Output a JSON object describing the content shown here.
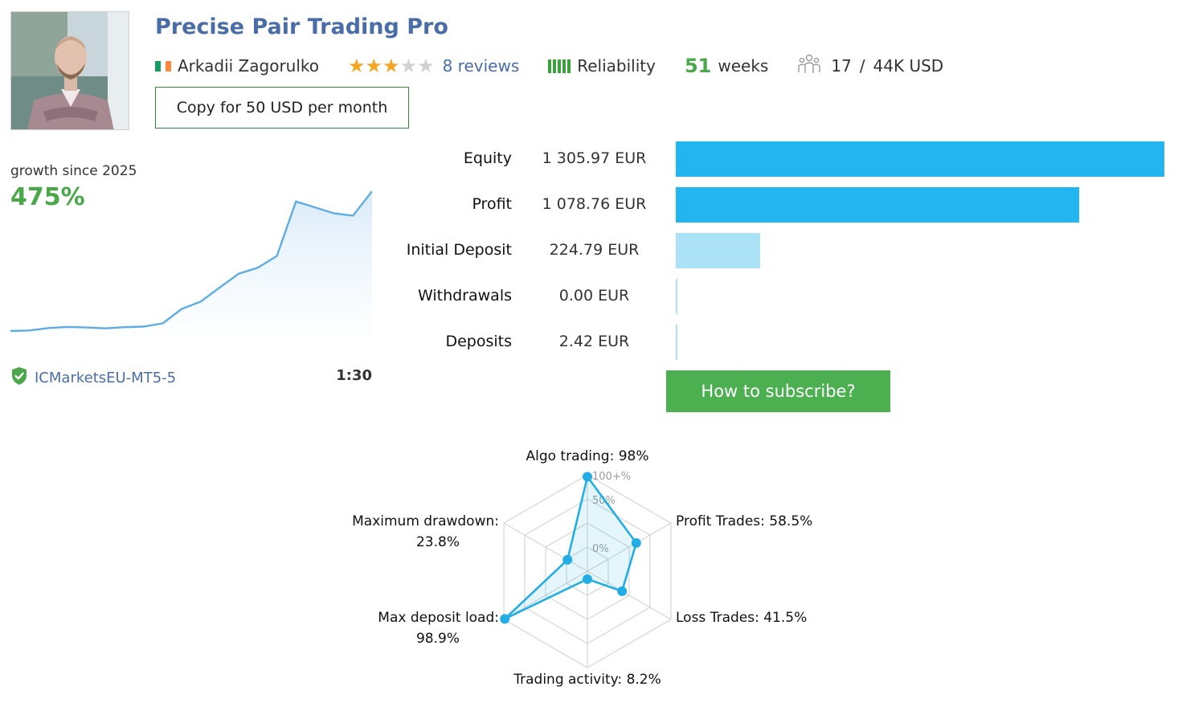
{
  "header": {
    "title": "Precise Pair Trading Pro",
    "author": "Arkadii Zagorulko",
    "rating": 3,
    "rating_max": 5,
    "reviews": "8 reviews",
    "reliability": "Reliability",
    "weeks_number": "51",
    "weeks_unit": "weeks",
    "subscribers": "17",
    "separator": "/",
    "funds": "44K USD",
    "copy_button": "Copy for 50 USD per month",
    "flag_colors": [
      "#169b62",
      "#ffffff",
      "#ff883e"
    ]
  },
  "growth": {
    "label": "growth since 2025",
    "value": "475%",
    "broker": "ICMarketsEU-MT5-5",
    "leverage": "1:30"
  },
  "stats": [
    {
      "label": "Equity",
      "value": "1 305.97 EUR",
      "amount": 1305.97,
      "color": "#22b5ef"
    },
    {
      "label": "Profit",
      "value": "1 078.76 EUR",
      "amount": 1078.76,
      "color": "#22b5ef"
    },
    {
      "label": "Initial Deposit",
      "value": "224.79 EUR",
      "amount": 224.79,
      "color": "#abe2f8"
    },
    {
      "label": "Withdrawals",
      "value": "0.00 EUR",
      "amount": 0.0,
      "color": "#abe2f8"
    },
    {
      "label": "Deposits",
      "value": "2.42 EUR",
      "amount": 2.42,
      "color": "#abe2f8"
    }
  ],
  "subscribe_button": "How to subscribe?",
  "chart_data": [
    {
      "type": "area",
      "title": "growth since 2025",
      "series": [
        {
          "values": [
            0,
            2,
            10,
            14,
            12,
            9,
            13,
            15,
            26,
            75,
            100,
            148,
            195,
            215,
            255,
            440,
            420,
            400,
            392,
            475
          ]
        }
      ],
      "color": "#5dade2"
    },
    {
      "type": "radar",
      "axes": [
        {
          "label": "Algo trading: 98%",
          "value": 98
        },
        {
          "label": "Profit Trades: 58.5%",
          "value": 58.5
        },
        {
          "label": "Loss Trades: 41.5%",
          "value": 41.5
        },
        {
          "label": "Trading activity: 8.2%",
          "value": 8.2
        },
        {
          "label_lines": [
            "Max deposit load:",
            "98.9%"
          ],
          "value": 98.9
        },
        {
          "label_lines": [
            "Maximum drawdown:",
            "23.8%"
          ],
          "value": 23.8
        }
      ],
      "ticks": [
        "0%",
        "50%",
        "100+%"
      ],
      "color": "#22aee5"
    }
  ]
}
